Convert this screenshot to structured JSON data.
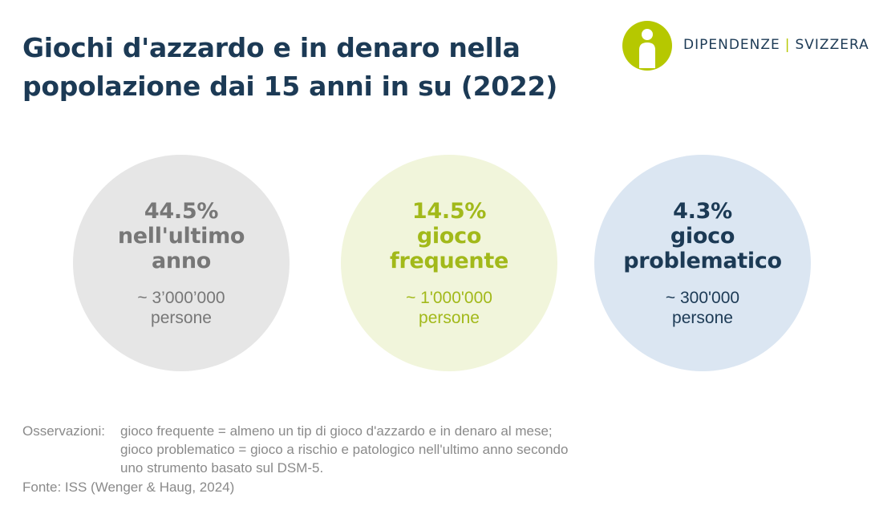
{
  "title": {
    "line1": "Giochi d'azzardo e in denaro nella",
    "line2": "popolazione dai 15 anni in su (2022)"
  },
  "logo": {
    "word1": "DIPENDENZE",
    "separator": "|",
    "word2": "SVIZZERA",
    "icon": "person-in-circle-icon",
    "color": "#b6c800"
  },
  "stats": [
    {
      "value": "44.5%",
      "label_lines": [
        "nell'ultimo",
        "anno"
      ],
      "count": "~ 3’000’000",
      "unit": "persone",
      "color": "#777777",
      "bg": "#e6e6e6"
    },
    {
      "value": "14.5%",
      "label_lines": [
        "gioco",
        "frequente"
      ],
      "count": "~ 1'000'000",
      "unit": "persone",
      "color": "#a2b91a",
      "bg": "#f1f5db"
    },
    {
      "value": "4.3%",
      "label_lines": [
        "gioco",
        "problematico"
      ],
      "count": "~ 300'000",
      "unit": "persone",
      "color": "#1c3a55",
      "bg": "#dbe6f2"
    }
  ],
  "notes": {
    "label": "Osservazioni:",
    "lines": [
      "gioco frequente = almeno un tip di gioco d'azzardo e in denaro al mese;",
      "gioco problematico = gioco a rischio e patologico nell'ultimo anno secondo",
      "uno strumento basato sul DSM-5."
    ],
    "source": "Fonte: ISS (Wenger & Haug, 2024)"
  }
}
